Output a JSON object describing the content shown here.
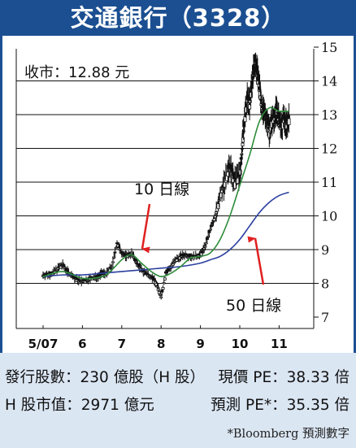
{
  "header": {
    "title": "交通銀行（3328）"
  },
  "chart_data": {
    "type": "line",
    "close_label": "收市：12.88 元",
    "ylim": [
      7,
      15
    ],
    "y_ticks": [
      "7",
      "8",
      "9",
      "10",
      "11",
      "12",
      "13",
      "14",
      "15"
    ],
    "x_ticks": [
      {
        "label": "5/07",
        "month": 0
      },
      {
        "label": "6",
        "month": 1
      },
      {
        "label": "7",
        "month": 2
      },
      {
        "label": "8",
        "month": 3
      },
      {
        "label": "9",
        "month": 4
      },
      {
        "label": "10",
        "month": 5
      },
      {
        "label": "11",
        "month": 6
      }
    ],
    "annotations": [
      {
        "text": "10 日線",
        "target": "ma10"
      },
      {
        "text": "50 日線",
        "target": "ma50"
      }
    ],
    "series": [
      {
        "id": "price",
        "x": [
          0.0,
          0.12,
          0.25,
          0.38,
          0.5,
          0.62,
          0.75,
          0.88,
          1.0,
          1.12,
          1.25,
          1.38,
          1.5,
          1.62,
          1.75,
          1.88,
          2.0,
          2.12,
          2.25,
          2.38,
          2.5,
          2.62,
          2.75,
          2.88,
          3.0,
          3.12,
          3.25,
          3.38,
          3.5,
          3.62,
          3.75,
          3.88,
          4.0,
          4.12,
          4.25,
          4.38,
          4.5,
          4.62,
          4.75,
          4.88,
          5.0,
          5.06,
          5.12,
          5.19,
          5.25,
          5.31,
          5.38,
          5.44,
          5.5,
          5.56,
          5.62,
          5.69,
          5.75,
          5.81,
          5.88,
          5.94,
          6.0,
          6.06,
          6.12,
          6.19,
          6.25
        ],
        "values": [
          8.25,
          8.25,
          8.3,
          8.45,
          8.55,
          8.35,
          8.2,
          8.1,
          8.05,
          8.1,
          8.15,
          8.2,
          8.3,
          8.3,
          8.5,
          9.2,
          8.9,
          8.8,
          8.9,
          8.6,
          8.4,
          8.3,
          8.2,
          8.0,
          7.6,
          8.3,
          8.5,
          8.7,
          8.8,
          8.85,
          8.8,
          8.8,
          8.85,
          9.1,
          9.6,
          10.0,
          10.6,
          11.0,
          11.5,
          11.0,
          11.2,
          12.0,
          12.8,
          13.5,
          13.3,
          13.9,
          14.6,
          14.3,
          13.8,
          13.2,
          13.0,
          12.9,
          12.5,
          12.8,
          12.9,
          13.2,
          12.8,
          12.6,
          12.9,
          12.7,
          12.88
        ]
      },
      {
        "id": "ma10",
        "x": [
          0.0,
          0.5,
          1.0,
          1.5,
          1.75,
          2.0,
          2.25,
          2.5,
          2.75,
          3.0,
          3.25,
          3.5,
          3.75,
          4.0,
          4.25,
          4.5,
          4.75,
          5.0,
          5.25,
          5.5,
          5.75,
          6.0,
          6.25
        ],
        "values": [
          8.2,
          8.35,
          8.15,
          8.2,
          8.4,
          8.7,
          8.85,
          8.6,
          8.35,
          8.2,
          8.3,
          8.5,
          8.75,
          8.8,
          8.9,
          9.3,
          10.0,
          10.9,
          11.8,
          12.8,
          13.2,
          13.1,
          13.1
        ]
      },
      {
        "id": "ma50",
        "x": [
          0.0,
          0.5,
          1.0,
          1.5,
          2.0,
          2.5,
          3.0,
          3.5,
          4.0,
          4.25,
          4.5,
          4.75,
          5.0,
          5.25,
          5.5,
          5.75,
          6.0,
          6.25
        ],
        "values": [
          8.2,
          8.25,
          8.25,
          8.3,
          8.35,
          8.4,
          8.45,
          8.5,
          8.6,
          8.7,
          8.8,
          9.0,
          9.3,
          9.7,
          10.1,
          10.4,
          10.6,
          10.7
        ]
      }
    ]
  },
  "footer": {
    "issued_shares": "發行股數：230 億股（H 股）",
    "current_pe": "現價 PE：38.33 倍",
    "h_market_cap": "H 股市值：2971 億元",
    "forecast_pe": "預測 PE*：35.35 倍",
    "footnote": "*Bloomberg 預測數字"
  },
  "colors": {
    "title_bg": "#1b4f91",
    "footer_bg": "#dbe6f3",
    "ma10": "#2e8b3a",
    "ma50": "#2b3f9e",
    "arrow": "#e02020",
    "candles": "#111111"
  }
}
